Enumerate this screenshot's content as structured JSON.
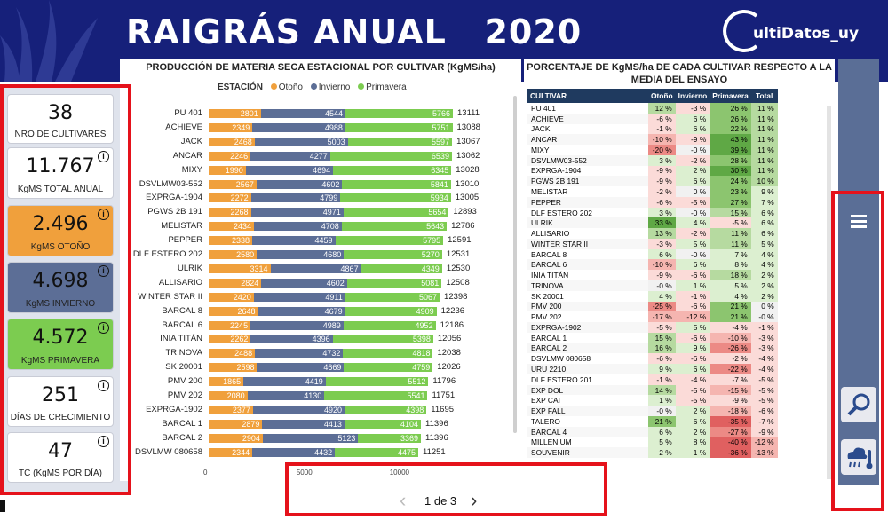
{
  "header": {
    "title": "RAIGRÁS ANUAL   2020",
    "logo_text": "ultiDatos_uy",
    "logo_letter": "C"
  },
  "kpis": [
    {
      "value": "38",
      "label": "NRO DE CULTIVARES",
      "color": "#ffffff",
      "info": false
    },
    {
      "value": "11.767",
      "label": "KgMS TOTAL ANUAL",
      "color": "#ffffff",
      "info": true
    },
    {
      "value": "2.496",
      "label": "KgMS OTOÑO",
      "color": "#f0a03c",
      "info": true
    },
    {
      "value": "4.698",
      "label": "KgMS INVIERNO",
      "color": "#5c6e96",
      "info": true
    },
    {
      "value": "4.572",
      "label": "KgMS PRIMAVERA",
      "color": "#7ccc50",
      "info": true
    },
    {
      "value": "251",
      "label": "DÍAS DE CRECIMIENTO",
      "color": "#ffffff",
      "info": true
    },
    {
      "value": "47",
      "label": "TC (KgMS POR DÍA)",
      "color": "#ffffff",
      "info": true
    }
  ],
  "chart_data": {
    "type": "bar",
    "title": "PRODUCCIÓN DE MATERIA SECA ESTACIONAL POR CULTIVAR (KgMS/ha)",
    "legend_title": "ESTACIÓN",
    "series_names": [
      "Otoño",
      "Invierno",
      "Primavera"
    ],
    "colors": {
      "Otoño": "#f0a03c",
      "Invierno": "#5c6e96",
      "Primavera": "#7ccc50"
    },
    "categories": [
      "PU 401",
      "ACHIEVE",
      "JACK",
      "ANCAR",
      "MIXY",
      "DSVLMW03-552",
      "EXPRGA-1904",
      "PGWS 2B 191",
      "MELISTAR",
      "PEPPER",
      "DLF ESTERO 202",
      "ULRIK",
      "ALLISARIO",
      "WINTER STAR II",
      "BARCAL 8",
      "BARCAL 6",
      "INIA TITÁN",
      "TRINOVA",
      "SK 20001",
      "PMV 200",
      "PMV 202",
      "EXPRGA-1902",
      "BARCAL 1",
      "BARCAL 2",
      "DSVLMW 080658"
    ],
    "series": [
      {
        "name": "Otoño",
        "values": [
          2801,
          2349,
          2468,
          2246,
          1990,
          2567,
          2272,
          2268,
          2434,
          2338,
          2580,
          3314,
          2824,
          2420,
          2648,
          2245,
          2262,
          2488,
          2598,
          1865,
          2080,
          2377,
          2879,
          2904,
          2344
        ]
      },
      {
        "name": "Invierno",
        "values": [
          4544,
          4988,
          5003,
          4277,
          4694,
          4602,
          4799,
          4971,
          4708,
          4459,
          4680,
          4867,
          4602,
          4911,
          4679,
          4989,
          4396,
          4732,
          4669,
          4419,
          4130,
          4920,
          4413,
          5123,
          4432
        ]
      },
      {
        "name": "Primavera",
        "values": [
          5766,
          5751,
          5597,
          6539,
          6345,
          5841,
          5934,
          5654,
          5643,
          5795,
          5270,
          4349,
          5081,
          5067,
          4909,
          4952,
          5398,
          4818,
          4759,
          5512,
          5541,
          4398,
          4104,
          3369,
          4475
        ]
      }
    ],
    "totals": [
      13111,
      13088,
      13067,
      13062,
      13028,
      13010,
      13005,
      12893,
      12786,
      12591,
      12531,
      12530,
      12508,
      12398,
      12236,
      12186,
      12056,
      12038,
      12026,
      11796,
      11751,
      11695,
      11396,
      11396,
      11251
    ],
    "x_ticks": [
      "0",
      "5000",
      "10000"
    ]
  },
  "table": {
    "title": "PORCENTAJE DE KgMS/ha DE CADA CULTIVAR RESPECTO A LA MEDIA DEL ENSAYO",
    "columns": [
      "CULTIVAR",
      "Otoño",
      "Invierno",
      "Primavera",
      "Total"
    ],
    "rows": [
      [
        "PU 401",
        "12 %",
        "-3 %",
        "26 %",
        "11 %"
      ],
      [
        "ACHIEVE",
        "-6 %",
        "6 %",
        "26 %",
        "11 %"
      ],
      [
        "JACK",
        "-1 %",
        "6 %",
        "22 %",
        "11 %"
      ],
      [
        "ANCAR",
        "-10 %",
        "-9 %",
        "43 %",
        "11 %"
      ],
      [
        "MIXY",
        "-20 %",
        "-0 %",
        "39 %",
        "11 %"
      ],
      [
        "DSVLMW03-552",
        "3 %",
        "-2 %",
        "28 %",
        "11 %"
      ],
      [
        "EXPRGA-1904",
        "-9 %",
        "2 %",
        "30 %",
        "11 %"
      ],
      [
        "PGWS 2B 191",
        "-9 %",
        "6 %",
        "24 %",
        "10 %"
      ],
      [
        "MELISTAR",
        "-2 %",
        "0 %",
        "23 %",
        "9 %"
      ],
      [
        "PEPPER",
        "-6 %",
        "-5 %",
        "27 %",
        "7 %"
      ],
      [
        "DLF ESTERO 202",
        "3 %",
        "-0 %",
        "15 %",
        "6 %"
      ],
      [
        "ULRIK",
        "33 %",
        "4 %",
        "-5 %",
        "6 %"
      ],
      [
        "ALLISARIO",
        "13 %",
        "-2 %",
        "11 %",
        "6 %"
      ],
      [
        "WINTER STAR II",
        "-3 %",
        "5 %",
        "11 %",
        "5 %"
      ],
      [
        "BARCAL 8",
        "6 %",
        "-0 %",
        "7 %",
        "4 %"
      ],
      [
        "BARCAL 6",
        "-10 %",
        "6 %",
        "8 %",
        "4 %"
      ],
      [
        "INIA TITÁN",
        "-9 %",
        "-6 %",
        "18 %",
        "2 %"
      ],
      [
        "TRINOVA",
        "-0 %",
        "1 %",
        "5 %",
        "2 %"
      ],
      [
        "SK 20001",
        "4 %",
        "-1 %",
        "4 %",
        "2 %"
      ],
      [
        "PMV 200",
        "-25 %",
        "-6 %",
        "21 %",
        "0 %"
      ],
      [
        "PMV 202",
        "-17 %",
        "-12 %",
        "21 %",
        "-0 %"
      ],
      [
        "EXPRGA-1902",
        "-5 %",
        "5 %",
        "-4 %",
        "-1 %"
      ],
      [
        "BARCAL 1",
        "15 %",
        "-6 %",
        "-10 %",
        "-3 %"
      ],
      [
        "BARCAL 2",
        "16 %",
        "9 %",
        "-26 %",
        "-3 %"
      ],
      [
        "DSVLMW 080658",
        "-6 %",
        "-6 %",
        "-2 %",
        "-4 %"
      ],
      [
        "URU 2210",
        "9 %",
        "6 %",
        "-22 %",
        "-4 %"
      ],
      [
        "DLF ESTERO 201",
        "-1 %",
        "-4 %",
        "-7 %",
        "-5 %"
      ],
      [
        "EXP DOL",
        "14 %",
        "-5 %",
        "-15 %",
        "-5 %"
      ],
      [
        "EXP CAI",
        "1 %",
        "-5 %",
        "-9 %",
        "-5 %"
      ],
      [
        "EXP FALL",
        "-0 %",
        "2 %",
        "-18 %",
        "-6 %"
      ],
      [
        "TALERO",
        "21 %",
        "6 %",
        "-35 %",
        "-7 %"
      ],
      [
        "BARCAL 4",
        "6 %",
        "2 %",
        "-27 %",
        "-9 %"
      ],
      [
        "MILLENIUM",
        "5 %",
        "8 %",
        "-40 %",
        "-12 %"
      ],
      [
        "SOUVENIR",
        "2 %",
        "1 %",
        "-36 %",
        "-13 %"
      ]
    ]
  },
  "nav": {
    "page_text": "1 de 3",
    "prev": "‹",
    "next": "›"
  },
  "side": {
    "menu_icon": "hamburger-icon",
    "search_icon": "search-icon",
    "weather_icon": "weather-thermometer-icon"
  }
}
